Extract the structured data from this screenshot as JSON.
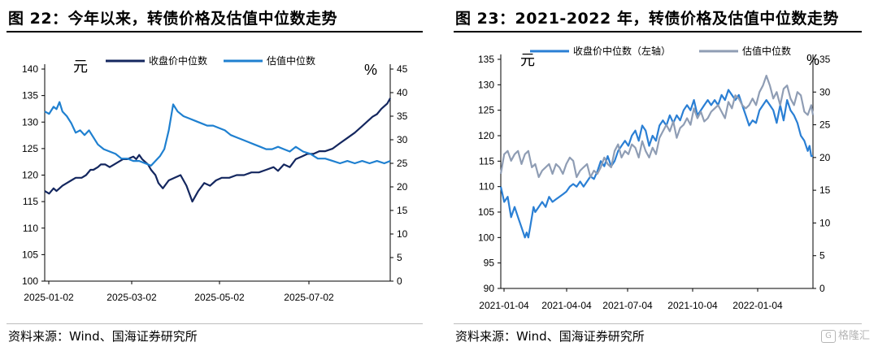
{
  "panels": [
    {
      "title": "图 22：今年以来，转债价格及估值中位数走势",
      "source": "资料来源：Wind、国海证券研究所"
    },
    {
      "title": "图 23：2021-2022 年，转债价格及估值中位数走势",
      "source": "资料来源：Wind、国海证券研究所"
    }
  ],
  "watermark": "格隆汇",
  "colors": {
    "dark_navy": "#14275f",
    "mid_blue": "#1f80d0",
    "bright_blue": "#2a7fd4",
    "gray_blue": "#8f9db4"
  },
  "chart_data": [
    {
      "type": "line",
      "ylabel_left": "元",
      "ylabel_right": "%",
      "ylim_left": [
        100,
        140
      ],
      "yticks_left": [
        100,
        105,
        110,
        115,
        120,
        125,
        130,
        135,
        140
      ],
      "ylim_right": [
        0,
        45
      ],
      "yticks_right": [
        0,
        5,
        10,
        15,
        20,
        25,
        30,
        35,
        40,
        45
      ],
      "xticks": [
        "2025-01-02",
        "2025-03-02",
        "2025-05-02",
        "2025-07-02"
      ],
      "grid": false,
      "legend_position": "top",
      "series": [
        {
          "name": "收盘价中位数",
          "axis": "left",
          "color": "#14275f",
          "x": [
            0,
            3,
            6,
            8,
            10,
            12,
            15,
            18,
            21,
            25,
            28,
            31,
            33,
            36,
            38,
            41,
            44,
            47,
            50,
            53,
            56,
            60,
            62,
            64,
            66,
            68,
            70,
            72,
            75,
            77,
            80,
            84,
            88,
            92,
            96,
            100,
            104,
            108,
            112,
            116,
            120,
            125,
            130,
            135,
            140,
            145,
            150,
            155,
            158,
            162,
            166,
            170,
            174,
            178,
            182,
            186,
            190,
            195,
            200,
            205,
            210,
            214,
            218,
            222,
            225,
            228,
            232,
            234
          ],
          "values": [
            117,
            116.5,
            117.5,
            117,
            117.5,
            118,
            118.5,
            119,
            119.5,
            119.5,
            120,
            121,
            121,
            121.5,
            122,
            122,
            121.5,
            122,
            122.5,
            123,
            123,
            123.5,
            123,
            123.8,
            123,
            122.5,
            122,
            121,
            120,
            118.5,
            117.5,
            119,
            119.5,
            120,
            118,
            115,
            117,
            118.5,
            118,
            119,
            119.5,
            119.5,
            120,
            120,
            120.5,
            120.5,
            121,
            121.5,
            120.8,
            122,
            121.5,
            123,
            123.5,
            124,
            124,
            124.5,
            124.5,
            125,
            126,
            127,
            128,
            129,
            130,
            131,
            131.5,
            132.5,
            133.5,
            134.5
          ]
        },
        {
          "name": "估值中位数",
          "axis": "right",
          "color": "#1f80d0",
          "x": [
            0,
            3,
            6,
            8,
            10,
            12,
            15,
            18,
            21,
            24,
            27,
            30,
            33,
            36,
            40,
            44,
            48,
            52,
            56,
            60,
            64,
            68,
            72,
            75,
            78,
            81,
            84,
            87,
            90,
            94,
            98,
            102,
            106,
            110,
            114,
            118,
            122,
            126,
            130,
            134,
            138,
            142,
            146,
            150,
            154,
            158,
            162,
            166,
            170,
            175,
            180,
            185,
            190,
            195,
            200,
            205,
            210,
            215,
            220,
            225,
            230,
            234
          ],
          "values": [
            36,
            35.5,
            37,
            36.5,
            38,
            36,
            35,
            33.5,
            31.5,
            32,
            31,
            32,
            30.5,
            29,
            28,
            27.5,
            27,
            26,
            26,
            25.5,
            25.5,
            25,
            24.5,
            25.5,
            26.5,
            28,
            32,
            37.5,
            36,
            35,
            34.5,
            34,
            33.5,
            33,
            33,
            32.5,
            32,
            31,
            30.5,
            30,
            29.5,
            29,
            28.5,
            28,
            28,
            28.5,
            28,
            27.5,
            28.5,
            27.5,
            27,
            26,
            26,
            25.5,
            25,
            25.5,
            25,
            25.5,
            25,
            25.5,
            25,
            25.5
          ]
        }
      ]
    },
    {
      "type": "line",
      "ylabel_left": "元",
      "ylabel_right": "%",
      "ylim_left": [
        90,
        135
      ],
      "yticks_left": [
        90,
        95,
        100,
        105,
        110,
        115,
        120,
        125,
        130,
        135
      ],
      "ylim_right": [
        0,
        35
      ],
      "yticks_right": [
        0,
        5,
        10,
        15,
        20,
        25,
        30,
        35
      ],
      "xticks": [
        "2021-01-04",
        "2021-04-04",
        "2021-07-04",
        "2021-10-04",
        "2022-01-04"
      ],
      "grid": false,
      "legend_position": "top",
      "series": [
        {
          "name": "收盘价中位数（左轴）",
          "axis": "left",
          "color": "#2a7fd4",
          "x": [
            0,
            4,
            8,
            12,
            16,
            20,
            24,
            28,
            30,
            32,
            34,
            36,
            38,
            40,
            44,
            48,
            52,
            56,
            60,
            64,
            68,
            72,
            76,
            80,
            84,
            88,
            92,
            96,
            100,
            104,
            108,
            112,
            116,
            120,
            124,
            128,
            132,
            136,
            140,
            144,
            148,
            152,
            156,
            160,
            164,
            168,
            172,
            176,
            180,
            184,
            188,
            192,
            196,
            200,
            204,
            208,
            212,
            216,
            220,
            224,
            228,
            232,
            236,
            240,
            244,
            248,
            252,
            256,
            260,
            264,
            268,
            272,
            276,
            280,
            284,
            288,
            292,
            296,
            300,
            304,
            308,
            312,
            316,
            320,
            324,
            328,
            332,
            336,
            340,
            344,
            348,
            352,
            356,
            358,
            360,
            362
          ],
          "values": [
            110,
            107,
            108,
            104,
            106,
            104,
            102,
            100,
            101,
            100,
            102,
            104,
            106,
            105,
            106,
            107,
            106,
            108,
            107,
            107.5,
            108,
            108.5,
            109,
            110,
            110.5,
            110,
            111,
            110,
            111,
            112,
            111.5,
            113,
            115,
            114,
            116,
            114,
            115,
            117,
            118,
            119,
            118,
            120,
            121,
            119,
            122,
            121,
            118,
            120,
            119,
            122,
            123,
            122,
            124,
            122.5,
            124,
            123,
            125,
            126,
            125,
            127,
            124,
            125,
            126,
            127,
            126,
            127,
            126,
            128,
            127,
            129,
            128,
            127,
            128,
            126,
            124,
            122,
            123,
            122.5,
            125,
            126,
            127,
            126,
            125,
            122.5,
            126,
            123,
            127,
            125,
            124,
            122.5,
            120,
            119,
            117,
            118,
            116,
            116
          ]
        },
        {
          "name": "估值中位数",
          "axis": "right",
          "color": "#8f9db4",
          "x": [
            0,
            4,
            8,
            12,
            16,
            20,
            24,
            28,
            32,
            36,
            40,
            44,
            48,
            52,
            56,
            60,
            64,
            68,
            72,
            76,
            80,
            84,
            88,
            92,
            96,
            100,
            104,
            108,
            112,
            116,
            120,
            124,
            128,
            132,
            136,
            140,
            144,
            148,
            152,
            156,
            160,
            164,
            168,
            172,
            176,
            180,
            184,
            188,
            192,
            196,
            200,
            204,
            208,
            212,
            216,
            220,
            224,
            228,
            232,
            236,
            240,
            244,
            248,
            252,
            256,
            260,
            264,
            268,
            272,
            276,
            280,
            284,
            288,
            292,
            296,
            300,
            304,
            308,
            312,
            316,
            320,
            324,
            328,
            332,
            336,
            340,
            344,
            348,
            352,
            356,
            360,
            362
          ],
          "values": [
            17.5,
            20.5,
            21,
            19.5,
            20.5,
            21,
            19,
            20.5,
            21,
            18.5,
            19,
            17,
            18,
            18.5,
            19,
            17.5,
            19,
            18.5,
            17.5,
            19,
            20,
            19.5,
            17,
            18,
            18.5,
            19,
            17,
            18,
            17.5,
            18.5,
            20,
            19,
            18.5,
            21,
            22,
            20,
            21,
            20.5,
            22,
            21.5,
            20,
            22.5,
            21,
            20,
            21.5,
            20.5,
            23,
            24,
            25,
            24,
            25.5,
            23,
            24.5,
            25,
            26,
            25,
            27.5,
            26,
            27,
            25.5,
            26,
            27,
            27.5,
            28,
            27,
            26,
            28.5,
            27.5,
            29.5,
            29,
            28,
            27.5,
            28,
            29,
            28,
            30,
            31,
            32.5,
            31,
            29,
            30,
            28,
            30.5,
            31,
            29,
            28,
            30,
            29.5,
            27,
            26.5,
            28,
            26.5
          ]
        }
      ]
    }
  ]
}
